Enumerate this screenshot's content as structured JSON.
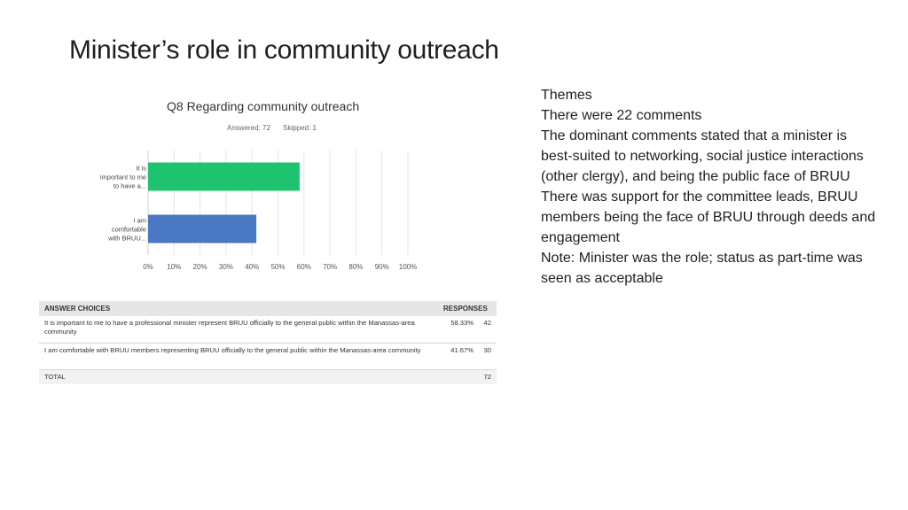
{
  "slide": {
    "title": "Minister’s role in community outreach"
  },
  "survey": {
    "question": "Q8 Regarding community outreach",
    "answered": "Answered: 72",
    "skipped": "Skipped: 1"
  },
  "chart_data": {
    "type": "bar",
    "orientation": "horizontal",
    "categories": [
      [
        "It is",
        "important to me",
        "to have a..."
      ],
      [
        "I am",
        "comfortable",
        "with BRUU..."
      ]
    ],
    "values": [
      58.33,
      41.67
    ],
    "colors": [
      "#1dc36f",
      "#4a78c2"
    ],
    "xticks": [
      "0%",
      "10%",
      "20%",
      "30%",
      "40%",
      "50%",
      "60%",
      "70%",
      "80%",
      "90%",
      "100%"
    ],
    "xlim": [
      0,
      100
    ],
    "grid": true
  },
  "answers": {
    "header_choices": "ANSWER CHOICES",
    "header_responses": "RESPONSES",
    "rows": [
      {
        "text": "It is important to me to have a professional minister represent BRUU officially to the general public within the Manassas-area community",
        "pct": "58.33%",
        "count": "42"
      },
      {
        "text": "I am comfortable with BRUU members representing BRUU officially to the general public within the Manassas-area community",
        "pct": "41.67%",
        "count": "30"
      }
    ],
    "total_label": "TOTAL",
    "total_count": "72"
  },
  "themes": {
    "lines": [
      "Themes",
      "There were 22 comments",
      "The dominant comments stated that a minister is best-suited to networking, social justice interactions (other clergy), and being the public face of BRUU",
      "There was support for the committee leads, BRUU members being the face of BRUU through deeds and engagement",
      "Note:  Minister was the role; status as part-time was seen as acceptable"
    ]
  }
}
